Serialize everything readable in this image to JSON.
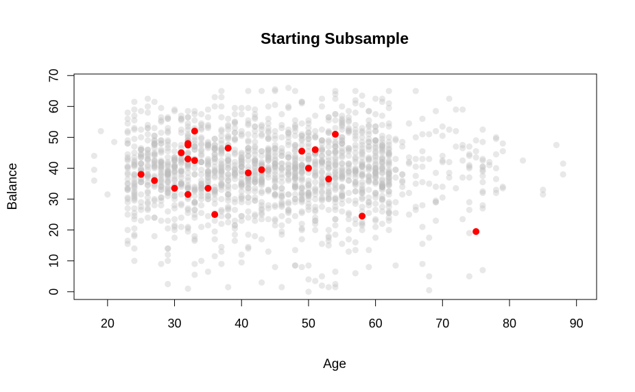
{
  "chart_data": {
    "type": "scatter",
    "title": "Starting Subsample",
    "xlabel": "Age",
    "ylabel": "Balance",
    "xlim": [
      15,
      93
    ],
    "ylim": [
      -2.5,
      70.5
    ],
    "xticks": [
      20,
      30,
      40,
      50,
      60,
      70,
      80,
      90
    ],
    "yticks": [
      0,
      10,
      20,
      30,
      40,
      50,
      60,
      70
    ],
    "grid": false,
    "legend": "none",
    "colors": {
      "background_points": "#bebebe",
      "subsample": "#ff0000"
    },
    "series": [
      {
        "role": "subsample",
        "points": [
          [
            25,
            38
          ],
          [
            27,
            36
          ],
          [
            30,
            33.5
          ],
          [
            31,
            45
          ],
          [
            32,
            48
          ],
          [
            32,
            47.5
          ],
          [
            32,
            43
          ],
          [
            32,
            31.5
          ],
          [
            33,
            52
          ],
          [
            33,
            42.5
          ],
          [
            35,
            33.5
          ],
          [
            36,
            25
          ],
          [
            38,
            46.5
          ],
          [
            41,
            38.5
          ],
          [
            43,
            39.5
          ],
          [
            49,
            45.5
          ],
          [
            50,
            40
          ],
          [
            51,
            46
          ],
          [
            53,
            36.5
          ],
          [
            54,
            51
          ],
          [
            58,
            24.5
          ],
          [
            75,
            19.5
          ]
        ]
      }
    ]
  }
}
